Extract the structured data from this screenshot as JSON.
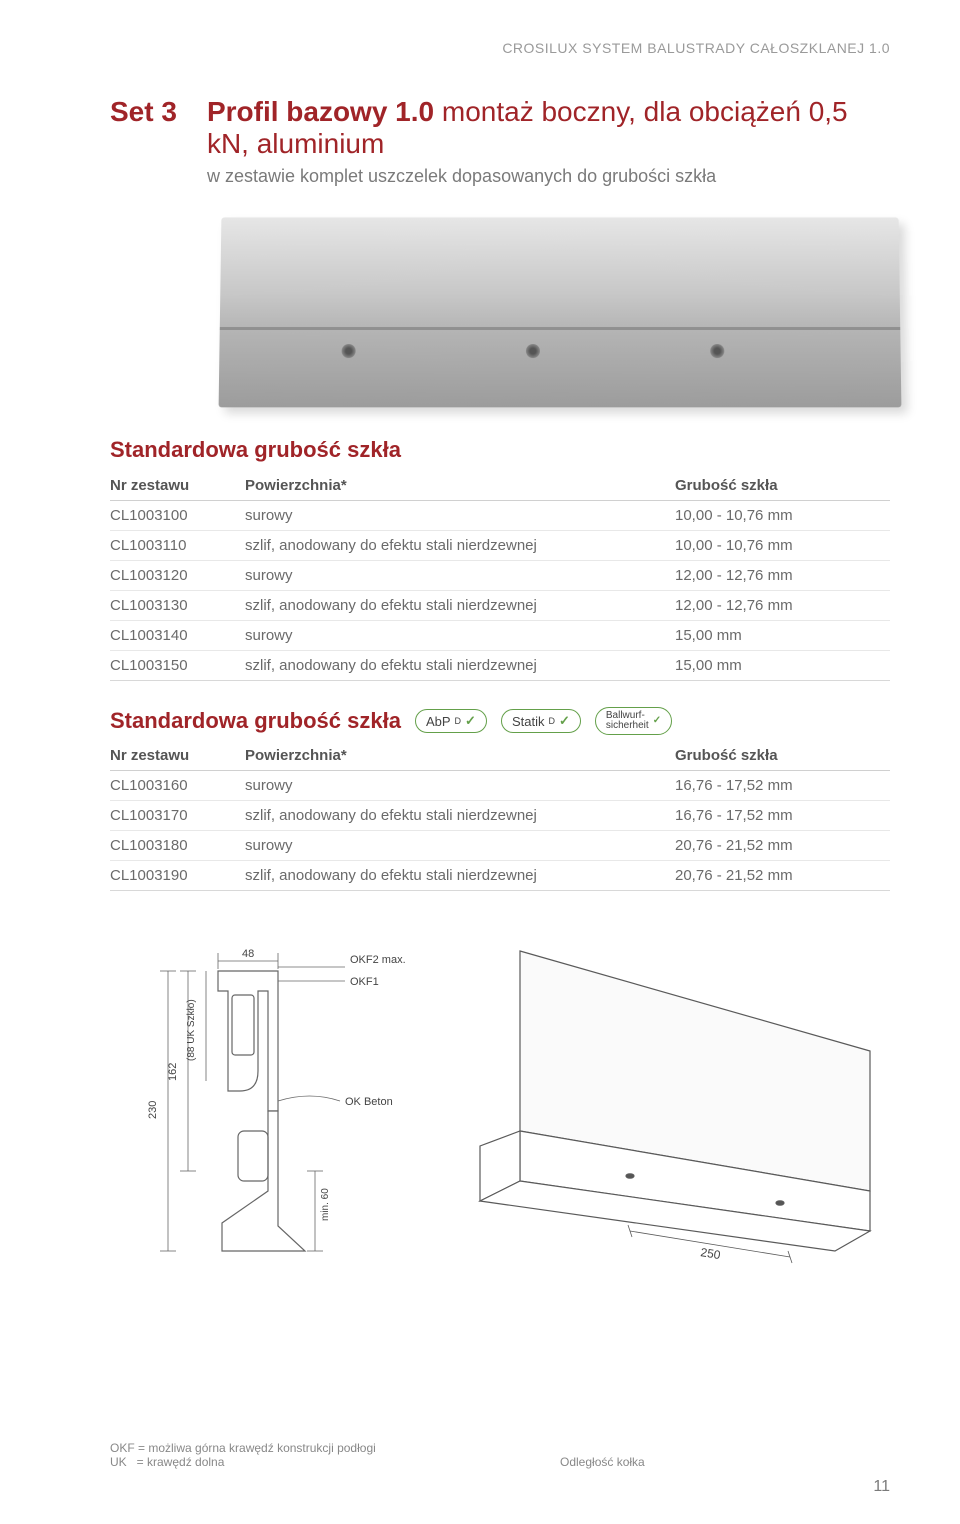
{
  "header": "CROSILUX SYSTEM BALUSTRADY CAŁOSZKLANEJ 1.0",
  "set_label": "Set 3",
  "title_bold": "Profil bazowy 1.0",
  "title_rest": " montaż boczny, dla obciążeń 0,5 kN, aluminium",
  "subtitle": "w zestawie komplet uszczelek dopasowanych do grubości szkła",
  "section1_heading": "Standardowa grubość szkła",
  "section2_heading": "Standardowa grubość szkła",
  "cols": {
    "c1": "Nr zestawu",
    "c2": "Powierzchnia*",
    "c3": "Grubość szkła"
  },
  "table1": [
    {
      "a": "CL1003100",
      "b": "surowy",
      "c": "10,00 - 10,76 mm"
    },
    {
      "a": "CL1003110",
      "b": "szlif, anodowany do efektu stali nierdzewnej",
      "c": "10,00 - 10,76 mm"
    },
    {
      "a": "CL1003120",
      "b": "surowy",
      "c": "12,00 - 12,76 mm"
    },
    {
      "a": "CL1003130",
      "b": "szlif, anodowany do efektu stali nierdzewnej",
      "c": "12,00 - 12,76 mm"
    },
    {
      "a": "CL1003140",
      "b": "surowy",
      "c": "15,00 mm"
    },
    {
      "a": "CL1003150",
      "b": "szlif, anodowany do efektu stali nierdzewnej",
      "c": "15,00 mm"
    }
  ],
  "table2": [
    {
      "a": "CL1003160",
      "b": "surowy",
      "c": "16,76 - 17,52 mm"
    },
    {
      "a": "CL1003170",
      "b": "szlif, anodowany do efektu stali nierdzewnej",
      "c": "16,76 - 17,52 mm"
    },
    {
      "a": "CL1003180",
      "b": "surowy",
      "c": "20,76 - 21,52 mm"
    },
    {
      "a": "CL1003190",
      "b": "szlif, anodowany do efektu stali nierdzewnej",
      "c": "20,76 - 21,52 mm"
    }
  ],
  "badges": {
    "b1": "AbP",
    "b1sub": "D",
    "b2": "Statik",
    "b2sub": "D",
    "b3": "Ballwurf-\nsicherheit"
  },
  "diagram": {
    "dim_48": "48",
    "okf2": "OKF2 max.",
    "okf1": "OKF1",
    "ok_beton": "OK Beton",
    "h230": "230",
    "h162": "162",
    "h88": "(88 UK Szkło)",
    "min60": "min. 60",
    "d250": "250"
  },
  "footnotes": {
    "left1": "OKF = możliwa górna krawędź konstrukcji podłogi",
    "left2": "UK   = krawędź dolna",
    "right": "Odległość kołka"
  },
  "page": "11",
  "colors": {
    "accent": "#a02428",
    "text": "#6a6a6a",
    "badge_border": "#64a04a"
  }
}
